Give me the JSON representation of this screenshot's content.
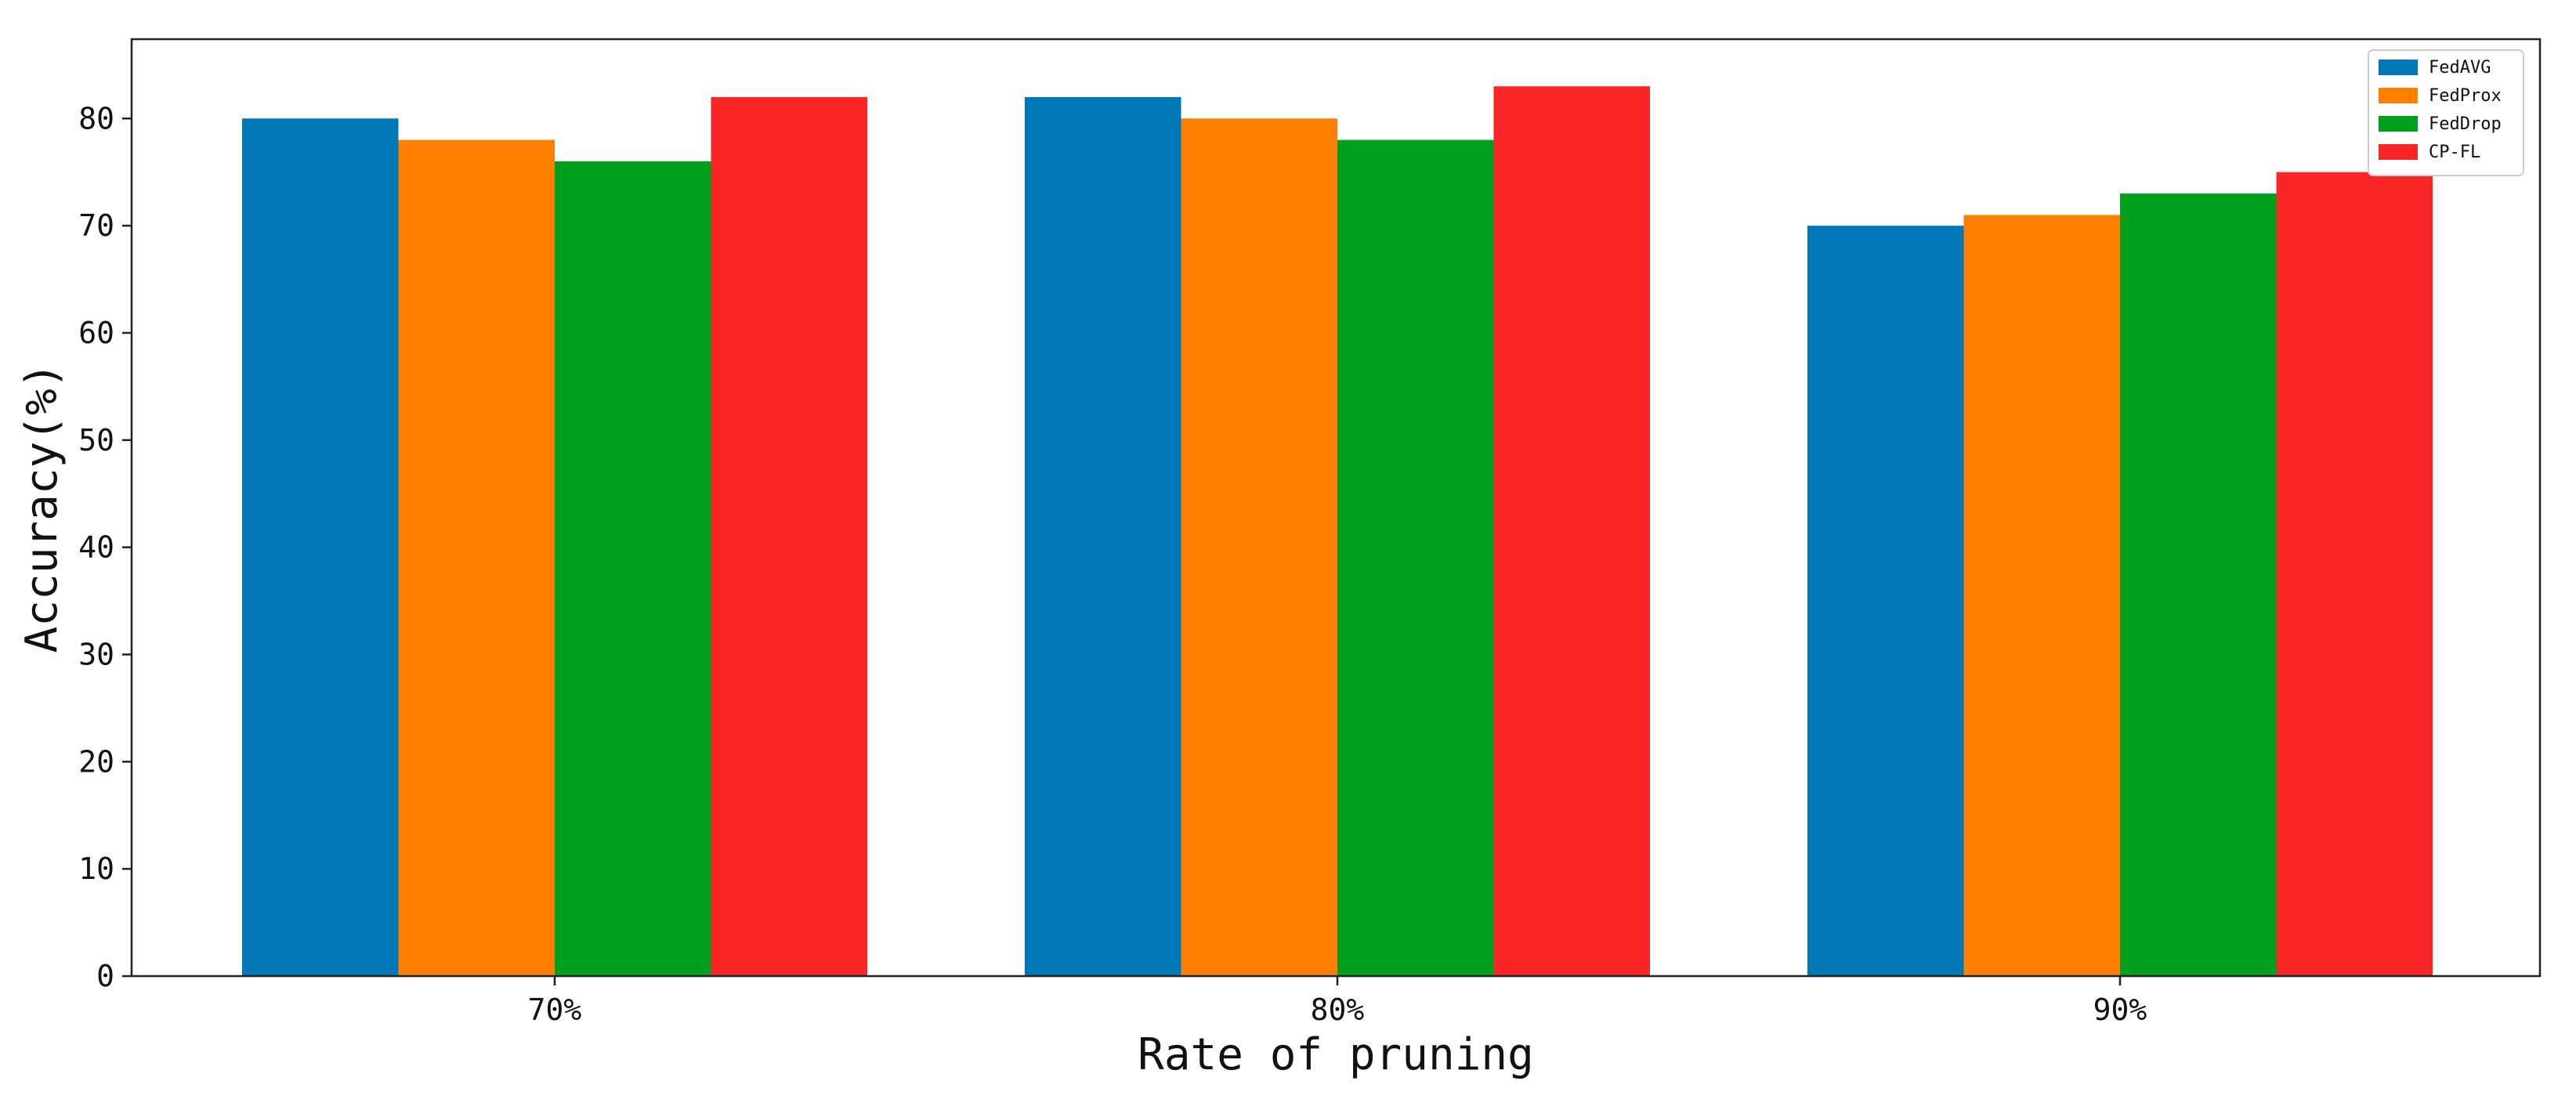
{
  "chart_data": {
    "type": "bar",
    "title": "",
    "xlabel": "Rate of pruning",
    "ylabel": "Accuracy(%)",
    "categories": [
      "70%",
      "80%",
      "90%"
    ],
    "series": [
      {
        "name": "FedAVG",
        "color": "#0077b6",
        "values": [
          80,
          82,
          70
        ]
      },
      {
        "name": "FedProx",
        "color": "#ff7f00",
        "values": [
          78,
          80,
          71
        ]
      },
      {
        "name": "FedDrop",
        "color": "#00a01c",
        "values": [
          76,
          78,
          73
        ]
      },
      {
        "name": "CP-FL",
        "color": "#f82626",
        "values": [
          82,
          83,
          75
        ]
      }
    ],
    "ylim": [
      0,
      87.4
    ],
    "yticks": [
      0,
      10,
      20,
      30,
      40,
      50,
      60,
      70,
      80
    ],
    "grid": false,
    "legend_position": "top-right"
  }
}
